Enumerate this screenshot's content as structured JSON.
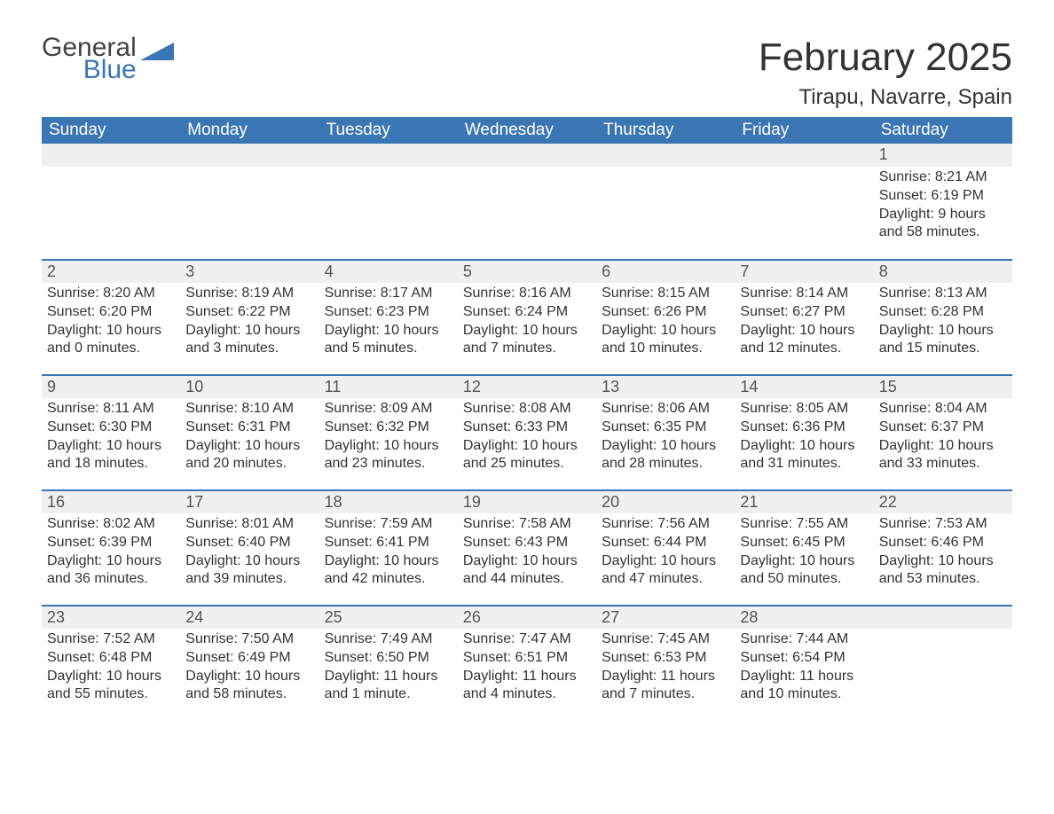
{
  "logo": {
    "word1": "General",
    "word2": "Blue",
    "triangle_color": "#3b76b4"
  },
  "title": "February 2025",
  "location": "Tirapu, Navarre, Spain",
  "colors": {
    "header_bg": "#3b76b4",
    "header_fg": "#ffffff",
    "daynum_bg": "#f0f0f0",
    "row_border": "#3b76b4",
    "text": "#333333",
    "page_bg": "#ffffff"
  },
  "typography": {
    "title_fontsize": 44,
    "location_fontsize": 24,
    "th_fontsize": 19,
    "daynum_fontsize": 18,
    "body_fontsize": 16
  },
  "weekdays": [
    "Sunday",
    "Monday",
    "Tuesday",
    "Wednesday",
    "Thursday",
    "Friday",
    "Saturday"
  ],
  "weeks": [
    [
      {
        "day": ""
      },
      {
        "day": ""
      },
      {
        "day": ""
      },
      {
        "day": ""
      },
      {
        "day": ""
      },
      {
        "day": ""
      },
      {
        "day": "1",
        "sunrise": "Sunrise: 8:21 AM",
        "sunset": "Sunset: 6:19 PM",
        "daylight": "Daylight: 9 hours and 58 minutes."
      }
    ],
    [
      {
        "day": "2",
        "sunrise": "Sunrise: 8:20 AM",
        "sunset": "Sunset: 6:20 PM",
        "daylight": "Daylight: 10 hours and 0 minutes."
      },
      {
        "day": "3",
        "sunrise": "Sunrise: 8:19 AM",
        "sunset": "Sunset: 6:22 PM",
        "daylight": "Daylight: 10 hours and 3 minutes."
      },
      {
        "day": "4",
        "sunrise": "Sunrise: 8:17 AM",
        "sunset": "Sunset: 6:23 PM",
        "daylight": "Daylight: 10 hours and 5 minutes."
      },
      {
        "day": "5",
        "sunrise": "Sunrise: 8:16 AM",
        "sunset": "Sunset: 6:24 PM",
        "daylight": "Daylight: 10 hours and 7 minutes."
      },
      {
        "day": "6",
        "sunrise": "Sunrise: 8:15 AM",
        "sunset": "Sunset: 6:26 PM",
        "daylight": "Daylight: 10 hours and 10 minutes."
      },
      {
        "day": "7",
        "sunrise": "Sunrise: 8:14 AM",
        "sunset": "Sunset: 6:27 PM",
        "daylight": "Daylight: 10 hours and 12 minutes."
      },
      {
        "day": "8",
        "sunrise": "Sunrise: 8:13 AM",
        "sunset": "Sunset: 6:28 PM",
        "daylight": "Daylight: 10 hours and 15 minutes."
      }
    ],
    [
      {
        "day": "9",
        "sunrise": "Sunrise: 8:11 AM",
        "sunset": "Sunset: 6:30 PM",
        "daylight": "Daylight: 10 hours and 18 minutes."
      },
      {
        "day": "10",
        "sunrise": "Sunrise: 8:10 AM",
        "sunset": "Sunset: 6:31 PM",
        "daylight": "Daylight: 10 hours and 20 minutes."
      },
      {
        "day": "11",
        "sunrise": "Sunrise: 8:09 AM",
        "sunset": "Sunset: 6:32 PM",
        "daylight": "Daylight: 10 hours and 23 minutes."
      },
      {
        "day": "12",
        "sunrise": "Sunrise: 8:08 AM",
        "sunset": "Sunset: 6:33 PM",
        "daylight": "Daylight: 10 hours and 25 minutes."
      },
      {
        "day": "13",
        "sunrise": "Sunrise: 8:06 AM",
        "sunset": "Sunset: 6:35 PM",
        "daylight": "Daylight: 10 hours and 28 minutes."
      },
      {
        "day": "14",
        "sunrise": "Sunrise: 8:05 AM",
        "sunset": "Sunset: 6:36 PM",
        "daylight": "Daylight: 10 hours and 31 minutes."
      },
      {
        "day": "15",
        "sunrise": "Sunrise: 8:04 AM",
        "sunset": "Sunset: 6:37 PM",
        "daylight": "Daylight: 10 hours and 33 minutes."
      }
    ],
    [
      {
        "day": "16",
        "sunrise": "Sunrise: 8:02 AM",
        "sunset": "Sunset: 6:39 PM",
        "daylight": "Daylight: 10 hours and 36 minutes."
      },
      {
        "day": "17",
        "sunrise": "Sunrise: 8:01 AM",
        "sunset": "Sunset: 6:40 PM",
        "daylight": "Daylight: 10 hours and 39 minutes."
      },
      {
        "day": "18",
        "sunrise": "Sunrise: 7:59 AM",
        "sunset": "Sunset: 6:41 PM",
        "daylight": "Daylight: 10 hours and 42 minutes."
      },
      {
        "day": "19",
        "sunrise": "Sunrise: 7:58 AM",
        "sunset": "Sunset: 6:43 PM",
        "daylight": "Daylight: 10 hours and 44 minutes."
      },
      {
        "day": "20",
        "sunrise": "Sunrise: 7:56 AM",
        "sunset": "Sunset: 6:44 PM",
        "daylight": "Daylight: 10 hours and 47 minutes."
      },
      {
        "day": "21",
        "sunrise": "Sunrise: 7:55 AM",
        "sunset": "Sunset: 6:45 PM",
        "daylight": "Daylight: 10 hours and 50 minutes."
      },
      {
        "day": "22",
        "sunrise": "Sunrise: 7:53 AM",
        "sunset": "Sunset: 6:46 PM",
        "daylight": "Daylight: 10 hours and 53 minutes."
      }
    ],
    [
      {
        "day": "23",
        "sunrise": "Sunrise: 7:52 AM",
        "sunset": "Sunset: 6:48 PM",
        "daylight": "Daylight: 10 hours and 55 minutes."
      },
      {
        "day": "24",
        "sunrise": "Sunrise: 7:50 AM",
        "sunset": "Sunset: 6:49 PM",
        "daylight": "Daylight: 10 hours and 58 minutes."
      },
      {
        "day": "25",
        "sunrise": "Sunrise: 7:49 AM",
        "sunset": "Sunset: 6:50 PM",
        "daylight": "Daylight: 11 hours and 1 minute."
      },
      {
        "day": "26",
        "sunrise": "Sunrise: 7:47 AM",
        "sunset": "Sunset: 6:51 PM",
        "daylight": "Daylight: 11 hours and 4 minutes."
      },
      {
        "day": "27",
        "sunrise": "Sunrise: 7:45 AM",
        "sunset": "Sunset: 6:53 PM",
        "daylight": "Daylight: 11 hours and 7 minutes."
      },
      {
        "day": "28",
        "sunrise": "Sunrise: 7:44 AM",
        "sunset": "Sunset: 6:54 PM",
        "daylight": "Daylight: 11 hours and 10 minutes."
      },
      {
        "day": ""
      }
    ]
  ]
}
